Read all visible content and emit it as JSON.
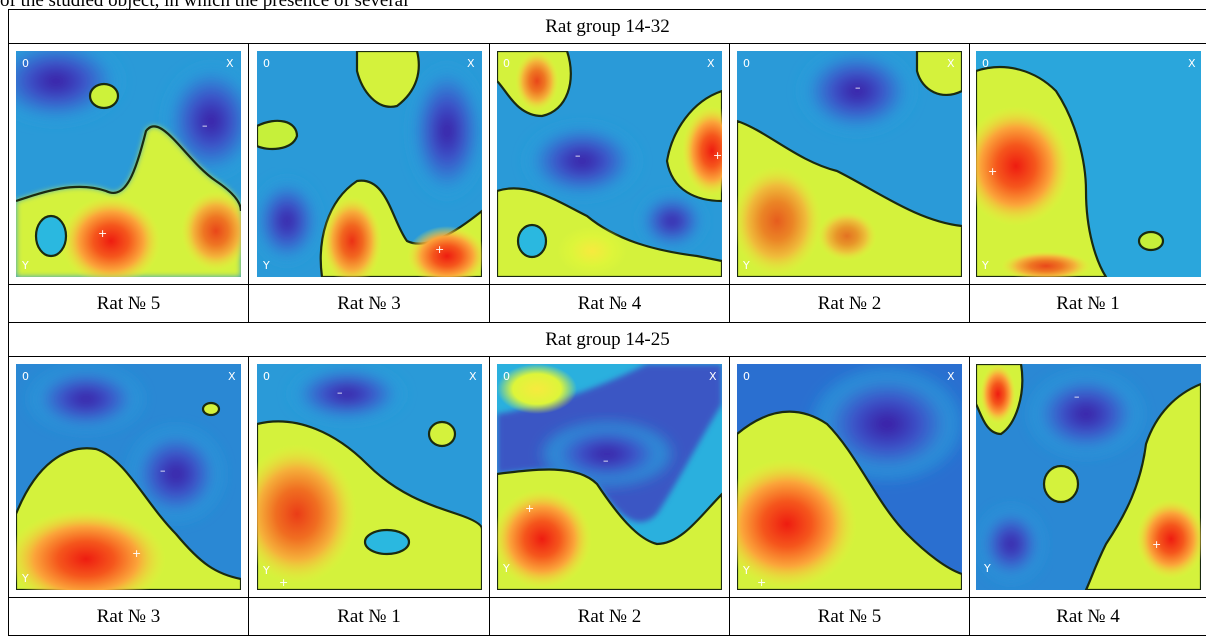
{
  "intro_text": "of the studied object, in which the presence of several",
  "groups": [
    {
      "title": "Rat group 14-32",
      "maps": [
        {
          "caption": "Rat № 5",
          "origin": "0",
          "x_mark": "X",
          "y_mark": "Y",
          "plus": "+",
          "minus": "–"
        },
        {
          "caption": "Rat № 3",
          "origin": "0",
          "x_mark": "X",
          "y_mark": "Y",
          "plus": "+",
          "minus": "–"
        },
        {
          "caption": "Rat № 4",
          "origin": "0",
          "x_mark": "X",
          "y_mark": "Y",
          "plus": "+",
          "minus": "–"
        },
        {
          "caption": "Rat № 2",
          "origin": "0",
          "x_mark": "X",
          "y_mark": "Y",
          "plus": "+",
          "minus": "–"
        },
        {
          "caption": "Rat № 1",
          "origin": "0",
          "x_mark": "X",
          "y_mark": "Y",
          "plus": "+",
          "minus": "–"
        }
      ]
    },
    {
      "title": "Rat group 14-25",
      "maps": [
        {
          "caption": "Rat № 3",
          "origin": "0",
          "x_mark": "X",
          "y_mark": "Y",
          "plus": "+",
          "minus": "–"
        },
        {
          "caption": "Rat № 1",
          "origin": "0",
          "x_mark": "X",
          "y_mark": "Y",
          "plus": "+",
          "minus": "–"
        },
        {
          "caption": "Rat № 2",
          "origin": "0",
          "x_mark": "X",
          "y_mark": "Y",
          "plus": "+",
          "minus": "–"
        },
        {
          "caption": "Rat № 5",
          "origin": "0",
          "x_mark": "X",
          "y_mark": "Y",
          "plus": "+",
          "minus": "–"
        },
        {
          "caption": "Rat № 4",
          "origin": "0",
          "x_mark": "X",
          "y_mark": "Y",
          "plus": "+",
          "minus": "–"
        }
      ]
    }
  ],
  "colors": {
    "deep_blue": "#3a1fa8",
    "blue": "#2f6fd6",
    "cyan": "#1fb8e0",
    "green": "#8dc66a",
    "yellow": "#d9f53a",
    "orange": "#f7a23a",
    "red": "#f23a1a",
    "contour": "#1a2a10"
  }
}
